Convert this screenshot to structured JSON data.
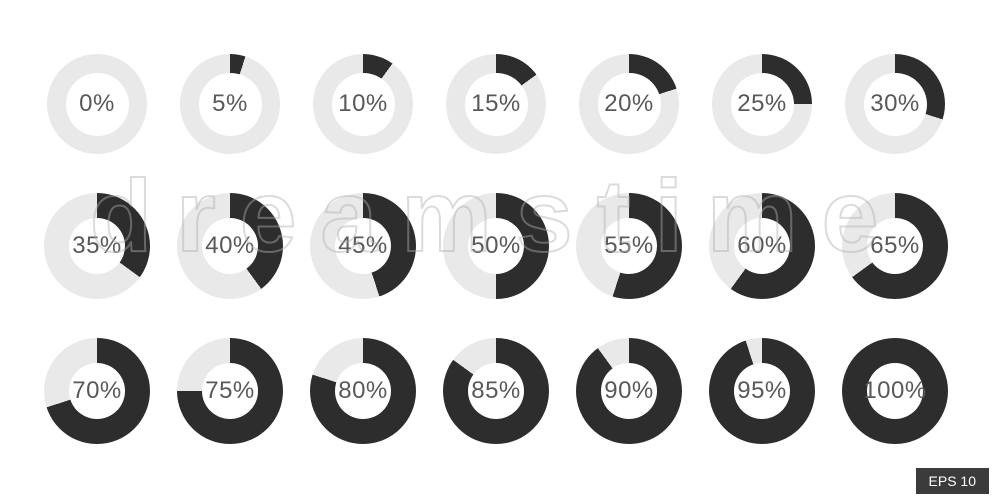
{
  "charts": [
    {
      "label": "0%",
      "percent": 0
    },
    {
      "label": "5%",
      "percent": 5
    },
    {
      "label": "10%",
      "percent": 10
    },
    {
      "label": "15%",
      "percent": 15
    },
    {
      "label": "20%",
      "percent": 20
    },
    {
      "label": "25%",
      "percent": 25
    },
    {
      "label": "30%",
      "percent": 30
    },
    {
      "label": "35%",
      "percent": 35
    },
    {
      "label": "40%",
      "percent": 40
    },
    {
      "label": "45%",
      "percent": 45
    },
    {
      "label": "50%",
      "percent": 50
    },
    {
      "label": "55%",
      "percent": 55
    },
    {
      "label": "60%",
      "percent": 60
    },
    {
      "label": "65%",
      "percent": 65
    },
    {
      "label": "70%",
      "percent": 70
    },
    {
      "label": "75%",
      "percent": 75
    },
    {
      "label": "80%",
      "percent": 80
    },
    {
      "label": "85%",
      "percent": 85
    },
    {
      "label": "90%",
      "percent": 90
    },
    {
      "label": "95%",
      "percent": 95
    },
    {
      "label": "100%",
      "percent": 100
    }
  ],
  "watermark": {
    "brand": "dreamstime"
  },
  "badge": {
    "label": "EPS 10"
  },
  "colors": {
    "filled": "#2d2d2e",
    "track": "#e9e9e9",
    "label_text": "#58595b",
    "badge_bg": "#3b3b3b",
    "badge_text": "#ffffff"
  },
  "chart_data": {
    "type": "pie",
    "subtype": "donut-progress-set",
    "title": "Percentage pie charts set from 0% to 100%",
    "labels": [
      "0%",
      "5%",
      "10%",
      "15%",
      "20%",
      "25%",
      "30%",
      "35%",
      "40%",
      "45%",
      "50%",
      "55%",
      "60%",
      "65%",
      "70%",
      "75%",
      "80%",
      "85%",
      "90%",
      "95%",
      "100%"
    ],
    "values": [
      0,
      5,
      10,
      15,
      20,
      25,
      30,
      35,
      40,
      45,
      50,
      55,
      60,
      65,
      70,
      75,
      80,
      85,
      90,
      95,
      100
    ],
    "layout": {
      "rows": 3,
      "cols": 7,
      "fill_start": "top",
      "fill_direction": "clockwise"
    },
    "colors": {
      "filled": "#2d2d2e",
      "unfilled": "#e9e9e9"
    },
    "annotations": [
      "EPS 10",
      "dreamstime"
    ]
  }
}
